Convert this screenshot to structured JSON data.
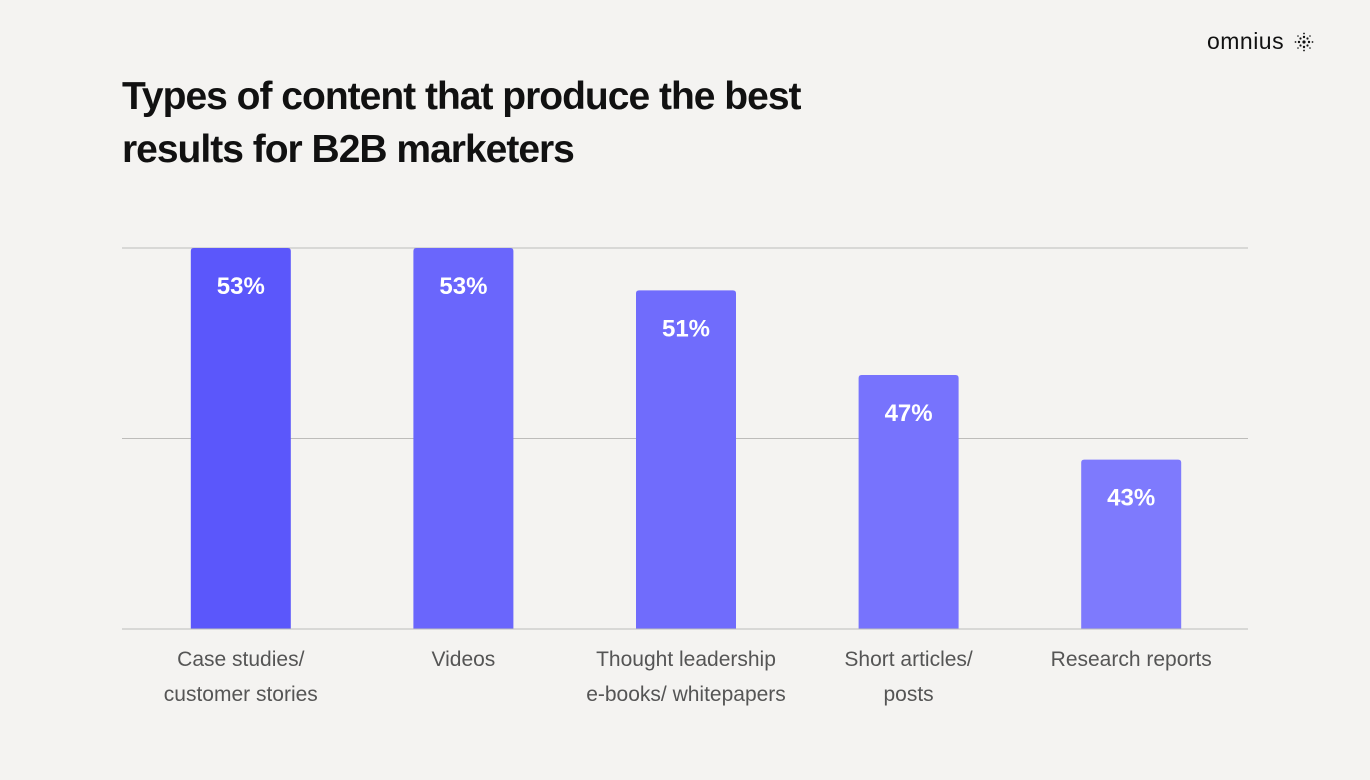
{
  "brand": "omnius",
  "chart_data": {
    "type": "bar",
    "title": "Types of content that produce the best results for B2B marketers",
    "categories": [
      [
        "Case studies/",
        "customer stories"
      ],
      [
        "Videos"
      ],
      [
        "Thought leadership",
        "e-books/ whitepapers"
      ],
      [
        "Short articles/",
        "posts"
      ],
      [
        "Research reports"
      ]
    ],
    "values": [
      53,
      53,
      51,
      47,
      43
    ],
    "value_labels": [
      "53%",
      "53%",
      "51%",
      "47%",
      "43%"
    ],
    "colors": [
      "#5b57fb",
      "#6a66fc",
      "#706cfc",
      "#7773fd",
      "#7e7afd"
    ],
    "ylim": [
      35,
      53
    ],
    "grid": true
  }
}
